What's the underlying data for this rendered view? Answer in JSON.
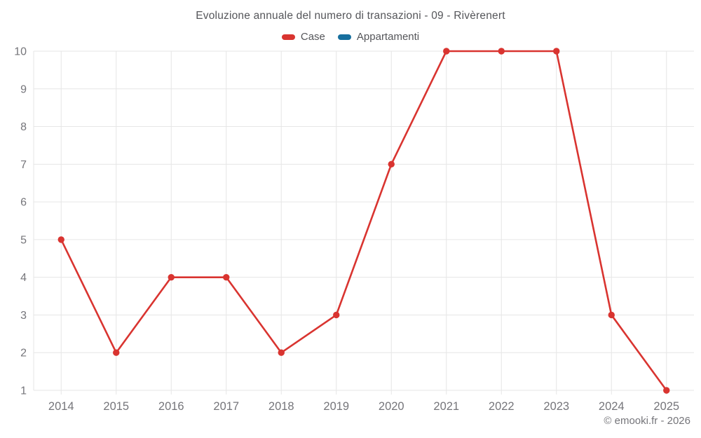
{
  "title": "Evoluzione annuale del numero di transazioni - 09 - Rivèrenert",
  "footer": {
    "copyright": "© emooki.fr - 2026"
  },
  "colors": {
    "case_series": "#d93430",
    "appartamenti_series": "#176f9e",
    "gridline": "#e6e6e6",
    "axis_label": "#75757a",
    "title_text": "#55565a"
  },
  "chart_data": {
    "type": "line",
    "title": "Evoluzione annuale del numero di transazioni - 09 - Rivèrenert",
    "categories": [
      "2014",
      "2015",
      "2016",
      "2017",
      "2018",
      "2019",
      "2020",
      "2021",
      "2022",
      "2023",
      "2024",
      "2025"
    ],
    "series": [
      {
        "name": "Case",
        "color": "#d93430",
        "values": [
          5,
          2,
          4,
          4,
          2,
          3,
          7,
          10,
          10,
          10,
          3,
          1
        ]
      },
      {
        "name": "Appartamenti",
        "color": "#176f9e",
        "values": []
      }
    ],
    "xlabel": "",
    "ylabel": "",
    "ylim": [
      1,
      10
    ],
    "yticks": [
      1,
      2,
      3,
      4,
      5,
      6,
      7,
      8,
      9,
      10
    ],
    "grid": true,
    "legend_position": "top"
  }
}
